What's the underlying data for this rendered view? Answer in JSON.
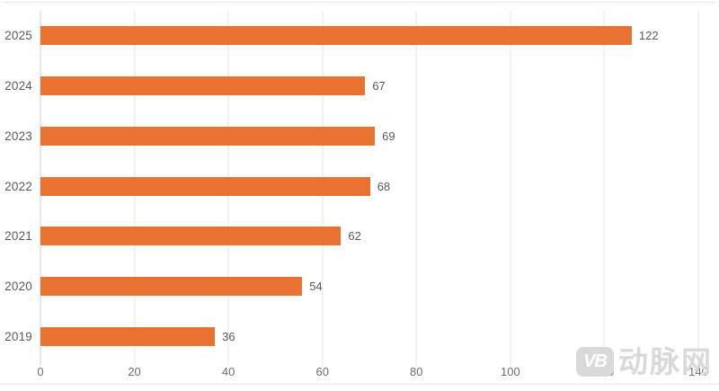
{
  "chart_data": {
    "type": "bar",
    "orientation": "horizontal",
    "title": "",
    "xlabel": "",
    "ylabel": "",
    "categories": [
      "2025",
      "2024",
      "2023",
      "2022",
      "2021",
      "2020",
      "2019"
    ],
    "values": [
      122,
      67,
      69,
      68,
      62,
      54,
      36
    ],
    "xlim": [
      0,
      140
    ],
    "xticks": [
      0,
      20,
      40,
      60,
      80,
      100,
      120,
      140
    ],
    "grid": "vertical-gridlines-on",
    "legend": "none",
    "colors": {
      "bar": "#E97132",
      "gridline": "#E4E4E4",
      "axis_line": "#D2D2D2",
      "category_label": "#595959",
      "value_label": "#595959",
      "tick_label": "#6E6E6E"
    }
  },
  "watermark": {
    "logo_text": "VB",
    "brand_text": "动脉网",
    "color": "#D9D9D9"
  }
}
